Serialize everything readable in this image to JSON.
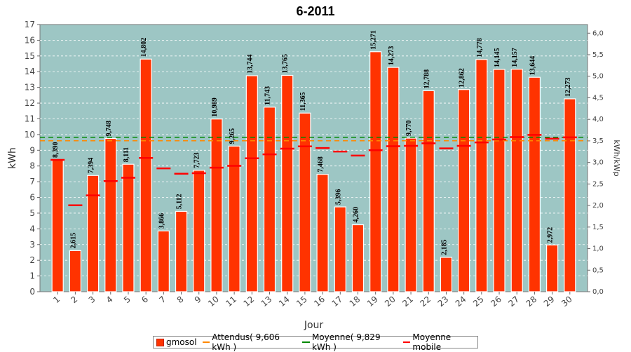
{
  "chart_data": {
    "type": "bar",
    "title": "6-2011",
    "xlabel": "Jour",
    "ylabel": "kWh",
    "y2label": "kWh/kWp",
    "ylim": [
      0,
      17
    ],
    "y2lim": [
      0,
      6.2
    ],
    "y_ticks": [
      "0",
      "1",
      "2",
      "3",
      "4",
      "5",
      "6",
      "7",
      "8",
      "9",
      "10",
      "11",
      "12",
      "13",
      "14",
      "15",
      "16",
      "17"
    ],
    "y2_ticks": [
      "0,0",
      "0,5",
      "1,0",
      "1,5",
      "2,0",
      "2,5",
      "3,0",
      "3,5",
      "4,0",
      "4,5",
      "5,0",
      "5,5",
      "6,0"
    ],
    "categories": [
      "1",
      "2",
      "3",
      "4",
      "5",
      "6",
      "7",
      "8",
      "9",
      "10",
      "11",
      "12",
      "13",
      "14",
      "15",
      "16",
      "17",
      "18",
      "19",
      "20",
      "21",
      "22",
      "23",
      "24",
      "25",
      "26",
      "27",
      "28",
      "29",
      "30"
    ],
    "series": [
      {
        "name": "gmosol",
        "color": "#ff3300",
        "values": [
          8.39,
          2.615,
          7.394,
          9.748,
          8.111,
          14.802,
          3.866,
          5.112,
          7.723,
          10.989,
          9.265,
          13.744,
          11.743,
          13.765,
          11.365,
          7.468,
          5.396,
          4.26,
          15.271,
          14.273,
          9.77,
          12.788,
          2.185,
          12.862,
          14.778,
          14.145,
          14.157,
          13.644,
          2.972,
          12.273
        ],
        "labels": [
          "8,390",
          "2,615",
          "7,394",
          "9,748",
          "8,111",
          "14,802",
          "3,866",
          "5,112",
          "7,723",
          "10,989",
          "9,265",
          "13,744",
          "11,743",
          "13,765",
          "11,365",
          "7,468",
          "5,396",
          "4,260",
          "15,271",
          "14,273",
          "9,770",
          "12,788",
          "2,185",
          "12,862",
          "14,778",
          "14,145",
          "14,157",
          "13,644",
          "2,972",
          "12,273"
        ]
      },
      {
        "name": "Moyenne mobile",
        "color": "#ff0000",
        "values": [
          8.39,
          5.5,
          6.13,
          7.04,
          7.25,
          8.51,
          7.85,
          7.51,
          7.54,
          7.89,
          8.01,
          8.49,
          8.74,
          9.1,
          9.25,
          9.14,
          8.92,
          8.66,
          9.0,
          9.26,
          9.28,
          9.44,
          9.12,
          9.28,
          9.5,
          9.68,
          9.84,
          9.98,
          9.74,
          9.82
        ]
      }
    ],
    "reference_lines": [
      {
        "name": "Attendus( 9,606 kWh )",
        "value": 9.606,
        "color": "#ff8800"
      },
      {
        "name": "Moyenne( 9,829 kWh )",
        "value": 9.829,
        "color": "#008800"
      }
    ],
    "colors": {
      "plot_bg": "#9dc6c4",
      "bar": "#ff3300",
      "grid": "#ffffff"
    }
  }
}
